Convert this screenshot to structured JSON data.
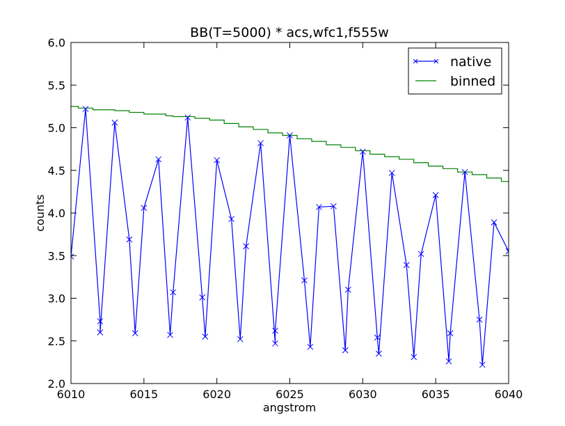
{
  "chart_data": {
    "type": "line",
    "title": "BB(T=5000) * acs,wfc1,f555w",
    "xlabel": "angstrom",
    "ylabel": "counts",
    "xlim": [
      6010,
      6040
    ],
    "ylim": [
      2.0,
      6.0
    ],
    "xticks": [
      6010,
      6015,
      6020,
      6025,
      6030,
      6035,
      6040
    ],
    "xtick_labels": [
      "6010",
      "6015",
      "6020",
      "6025",
      "6030",
      "6035",
      "6040"
    ],
    "yticks": [
      2.0,
      2.5,
      3.0,
      3.5,
      4.0,
      4.5,
      5.0,
      5.5,
      6.0
    ],
    "ytick_labels": [
      "2.0",
      "2.5",
      "3.0",
      "3.5",
      "4.0",
      "4.5",
      "5.0",
      "5.5",
      "6.0"
    ],
    "grid": false,
    "legend_position": "top-right",
    "series": [
      {
        "name": "native",
        "style": "line-with-x-markers",
        "color": "#0000ff",
        "points": [
          [
            6010.0,
            3.49
          ],
          [
            6011.0,
            5.22
          ],
          [
            6012.0,
            2.73
          ],
          [
            6012.0,
            2.6
          ],
          [
            6013.0,
            5.06
          ],
          [
            6014.0,
            3.69
          ],
          [
            6014.4,
            2.59
          ],
          [
            6015.0,
            4.06
          ],
          [
            6016.0,
            4.63
          ],
          [
            6016.8,
            2.57
          ],
          [
            6017.0,
            3.07
          ],
          [
            6018.0,
            5.12
          ],
          [
            6019.0,
            3.01
          ],
          [
            6019.2,
            2.55
          ],
          [
            6020.0,
            4.62
          ],
          [
            6021.0,
            3.93
          ],
          [
            6021.6,
            2.52
          ],
          [
            6022.0,
            3.61
          ],
          [
            6023.0,
            4.82
          ],
          [
            6024.0,
            2.47
          ],
          [
            6024.0,
            2.62
          ],
          [
            6025.0,
            4.91
          ],
          [
            6026.0,
            3.21
          ],
          [
            6026.4,
            2.43
          ],
          [
            6027.0,
            4.07
          ],
          [
            6028.0,
            4.08
          ],
          [
            6028.8,
            2.39
          ],
          [
            6029.0,
            3.1
          ],
          [
            6030.0,
            4.72
          ],
          [
            6031.0,
            2.54
          ],
          [
            6031.1,
            2.35
          ],
          [
            6032.0,
            4.47
          ],
          [
            6033.0,
            3.39
          ],
          [
            6033.5,
            2.31
          ],
          [
            6034.0,
            3.52
          ],
          [
            6035.0,
            4.21
          ],
          [
            6035.9,
            2.26
          ],
          [
            6036.0,
            2.59
          ],
          [
            6037.0,
            4.48
          ],
          [
            6038.0,
            2.75
          ],
          [
            6038.2,
            2.22
          ],
          [
            6039.0,
            3.89
          ],
          [
            6040.0,
            3.55
          ]
        ]
      },
      {
        "name": "binned",
        "style": "step",
        "color": "#008000",
        "bin_edges": [
          6010.0,
          6010.5,
          6011.5,
          6013.0,
          6014.0,
          6015.0,
          6016.5,
          6017.0,
          6018.5,
          6019.5,
          6020.5,
          6021.5,
          6022.5,
          6023.5,
          6024.5,
          6025.5,
          6026.5,
          6027.5,
          6028.5,
          6029.5,
          6030.5,
          6031.5,
          6032.5,
          6033.5,
          6034.5,
          6035.5,
          6036.5,
          6037.5,
          6038.5,
          6039.5,
          6040.0
        ],
        "values": [
          5.25,
          5.23,
          5.21,
          5.2,
          5.18,
          5.16,
          5.14,
          5.13,
          5.11,
          5.09,
          5.05,
          5.01,
          4.98,
          4.94,
          4.91,
          4.87,
          4.84,
          4.8,
          4.77,
          4.73,
          4.69,
          4.66,
          4.63,
          4.59,
          4.55,
          4.52,
          4.48,
          4.45,
          4.41,
          4.37
        ]
      }
    ]
  }
}
